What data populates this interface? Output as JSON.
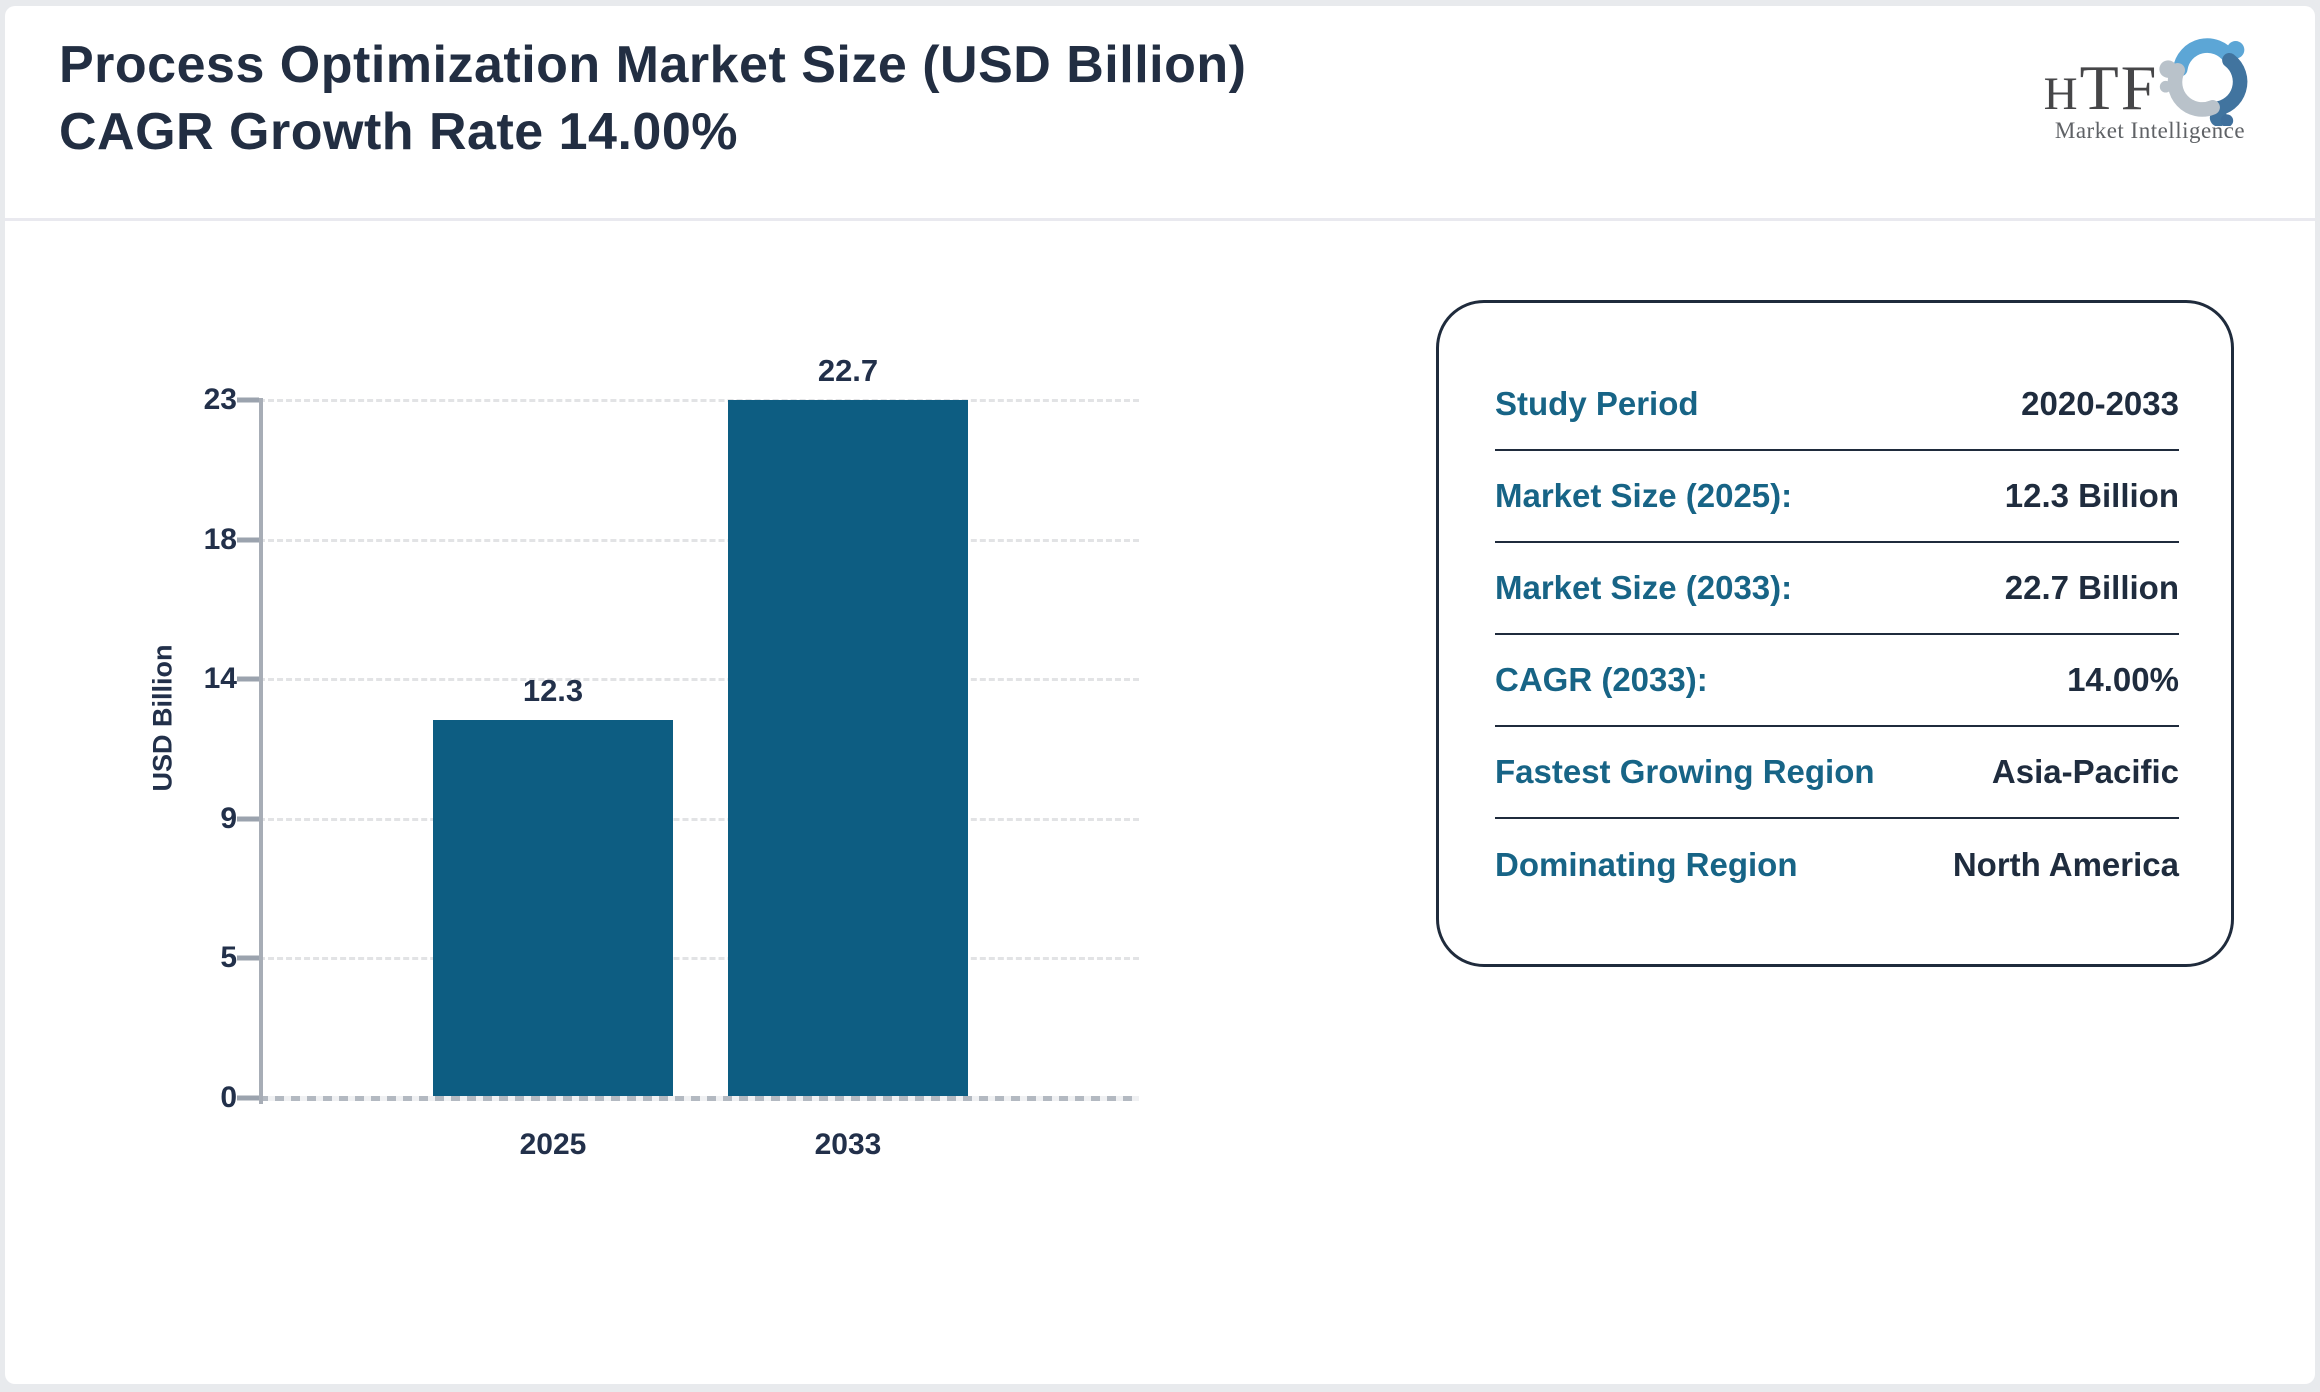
{
  "page": {
    "background": "#e8eaed",
    "card_background": "#ffffff"
  },
  "header": {
    "title_line1": "Process Optimization Market Size (USD Billion)",
    "title_line2": "CAGR Growth Rate 14.00%",
    "logo": {
      "text": "HTF",
      "subtext": "Market Intelligence",
      "swirl_colors": [
        "#5ca6d6",
        "#41749f",
        "#b9c2ca"
      ]
    }
  },
  "chart_data": {
    "type": "bar",
    "title": "Process Optimization Market Size (USD Billion) CAGR Growth Rate 14.00%",
    "categories": [
      "2025",
      "2033"
    ],
    "values": [
      12.3,
      22.7
    ],
    "value_labels": [
      "12.3",
      "22.7"
    ],
    "xlabel": "",
    "ylabel": "USD Billion",
    "yticks": [
      0,
      5,
      9,
      14,
      18,
      23
    ],
    "ylim": [
      0,
      22.7
    ],
    "grid": true,
    "legend": "none",
    "bar_color": "#0d5d82",
    "tick_color": "#22304a"
  },
  "info_panel": {
    "label_color": "#176486",
    "value_color": "#1f2c3e",
    "rows": [
      {
        "label": "Study Period",
        "value": "2020-2033"
      },
      {
        "label": "Market Size (2025):",
        "value": "12.3 Billion"
      },
      {
        "label": "Market Size (2033):",
        "value": "22.7 Billion"
      },
      {
        "label": "CAGR (2033):",
        "value": "14.00%"
      },
      {
        "label": "Fastest Growing Region",
        "value": "Asia-Pacific"
      },
      {
        "label": "Dominating Region",
        "value": "North America"
      }
    ]
  }
}
